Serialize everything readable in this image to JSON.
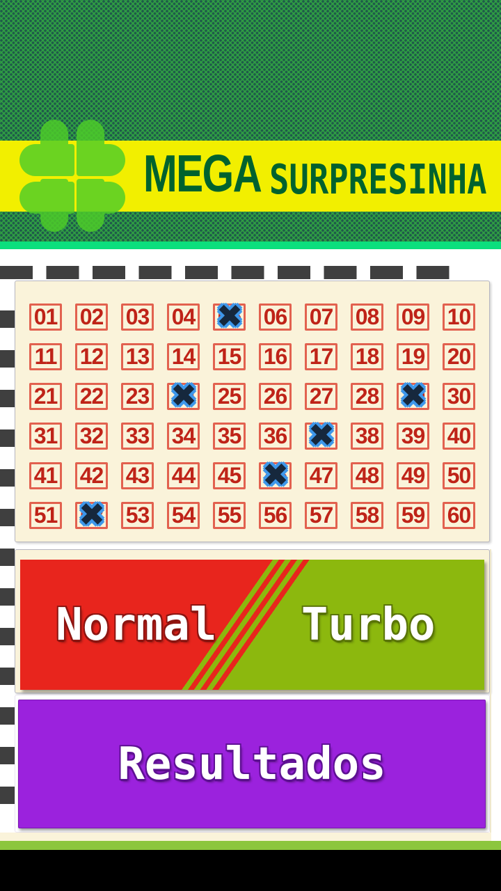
{
  "header": {
    "title_primary": "MEGA",
    "title_secondary": "SURPRESINHA"
  },
  "board": {
    "numbers": [
      "01",
      "02",
      "03",
      "04",
      "05",
      "06",
      "07",
      "08",
      "09",
      "10",
      "11",
      "12",
      "13",
      "14",
      "15",
      "16",
      "17",
      "18",
      "19",
      "20",
      "21",
      "22",
      "23",
      "24",
      "25",
      "26",
      "27",
      "28",
      "29",
      "30",
      "31",
      "32",
      "33",
      "34",
      "35",
      "36",
      "37",
      "38",
      "39",
      "40",
      "41",
      "42",
      "43",
      "44",
      "45",
      "46",
      "47",
      "48",
      "49",
      "50",
      "51",
      "52",
      "53",
      "54",
      "55",
      "56",
      "57",
      "58",
      "59",
      "60"
    ],
    "marked": [
      "05",
      "24",
      "29",
      "37",
      "46",
      "52"
    ],
    "mark_icon": "✖"
  },
  "actions": {
    "normal_label": "Normal",
    "turbo_label": "Turbo",
    "results_label": "Resultados"
  },
  "colors": {
    "header_pattern_green": "#2f9e44",
    "banner_yellow": "#f2ef00",
    "title_green": "#00622e",
    "clover_green": "#4ecd29",
    "divider_green": "#0bdf7d",
    "card_cream": "#faf3da",
    "number_red": "#bf2318",
    "cell_border_red": "#e2614f",
    "mark_navy": "#16283d",
    "mark_blue": "#3e97ea",
    "normal_red": "#e8251d",
    "turbo_olive": "#8cb80e",
    "results_purple": "#9b22dd",
    "perforation_gray": "#3f3f3f",
    "footer_green": "#8cc63e",
    "footer_black": "#000000"
  }
}
